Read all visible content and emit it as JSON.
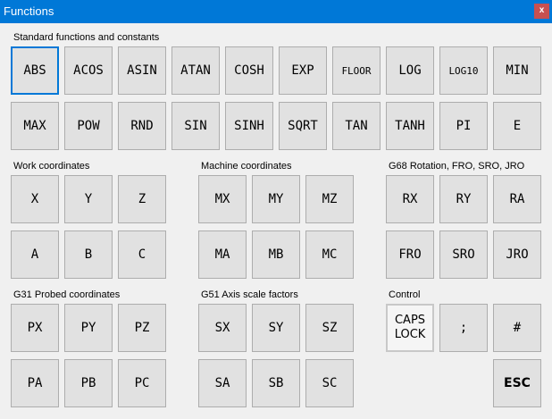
{
  "window": {
    "title": "Functions",
    "close_label": "x",
    "accent": "#0078d7"
  },
  "groups": [
    {
      "label": "Standard functions and constants",
      "buttons": [
        "ABS",
        "ACOS",
        "ASIN",
        "ATAN",
        "COSH",
        "EXP",
        "FLOOR",
        "LOG",
        "LOG10",
        "MIN",
        "MAX",
        "POW",
        "RND",
        "SIN",
        "SINH",
        "SQRT",
        "TAN",
        "TANH",
        "PI",
        "E"
      ]
    },
    {
      "label": "Work coordinates",
      "buttons": [
        "X",
        "Y",
        "Z",
        "A",
        "B",
        "C"
      ]
    },
    {
      "label": "Machine coordinates",
      "buttons": [
        "MX",
        "MY",
        "MZ",
        "MA",
        "MB",
        "MC"
      ]
    },
    {
      "label": "G68 Rotation, FRO, SRO, JRO",
      "buttons": [
        "RX",
        "RY",
        "RA",
        "FRO",
        "SRO",
        "JRO"
      ]
    },
    {
      "label": "G31 Probed coordinates",
      "buttons": [
        "PX",
        "PY",
        "PZ",
        "PA",
        "PB",
        "PC"
      ]
    },
    {
      "label": "G51 Axis scale factors",
      "buttons": [
        "SX",
        "SY",
        "SZ",
        "SA",
        "SB",
        "SC"
      ]
    },
    {
      "label": "Control",
      "buttons": [
        "CAPS\nLOCK",
        ";",
        "#",
        "",
        "",
        "ESC"
      ]
    }
  ]
}
